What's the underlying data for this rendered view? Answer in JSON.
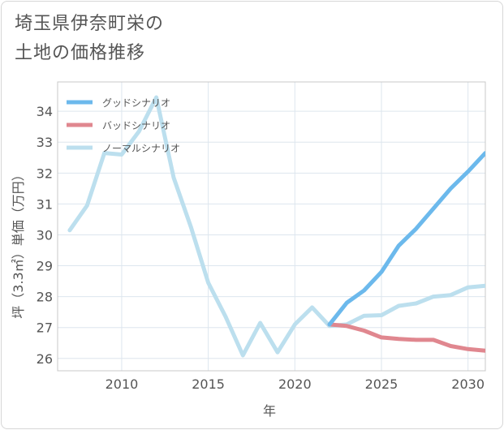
{
  "title": {
    "line1": "埼玉県伊奈町栄の",
    "line2": "土地の価格推移"
  },
  "chart_data": {
    "type": "line",
    "xlabel": "年",
    "ylabel": "坪（3.3㎡）単価（万円）",
    "xlim": [
      2006.3,
      2031.0
    ],
    "ylim": [
      25.6,
      34.95
    ],
    "xticks": [
      2010,
      2015,
      2020,
      2025,
      2030
    ],
    "yticks": [
      26,
      27,
      28,
      29,
      30,
      31,
      32,
      33,
      34
    ],
    "grid": true,
    "legend_position": "top-left",
    "series": [
      {
        "name": "グッドシナリオ",
        "color": "#6cb9ec",
        "x": [
          2022,
          2023,
          2024,
          2025,
          2026,
          2027,
          2028,
          2029,
          2030,
          2031
        ],
        "y": [
          27.1,
          27.8,
          28.2,
          28.8,
          29.65,
          30.2,
          30.85,
          31.5,
          32.05,
          32.65
        ]
      },
      {
        "name": "バッドシナリオ",
        "color": "#e0878f",
        "x": [
          2022,
          2023,
          2024,
          2025,
          2026,
          2027,
          2028,
          2029,
          2030,
          2031
        ],
        "y": [
          27.1,
          27.05,
          26.9,
          26.68,
          26.63,
          26.6,
          26.6,
          26.4,
          26.3,
          26.25
        ]
      },
      {
        "name": "ノーマルシナリオ",
        "color": "#bcdfee",
        "x": [
          2007,
          2008,
          2009,
          2010,
          2011,
          2012,
          2013,
          2014,
          2015,
          2016,
          2017,
          2018,
          2019,
          2020,
          2021,
          2022,
          2023,
          2024,
          2025,
          2026,
          2027,
          2028,
          2029,
          2030,
          2031
        ],
        "y": [
          30.15,
          30.95,
          32.65,
          32.6,
          33.35,
          34.45,
          31.85,
          30.25,
          28.45,
          27.35,
          26.1,
          27.15,
          26.2,
          27.1,
          27.65,
          27.05,
          27.1,
          27.38,
          27.4,
          27.7,
          27.78,
          28.0,
          28.05,
          28.3,
          28.35
        ]
      }
    ]
  }
}
